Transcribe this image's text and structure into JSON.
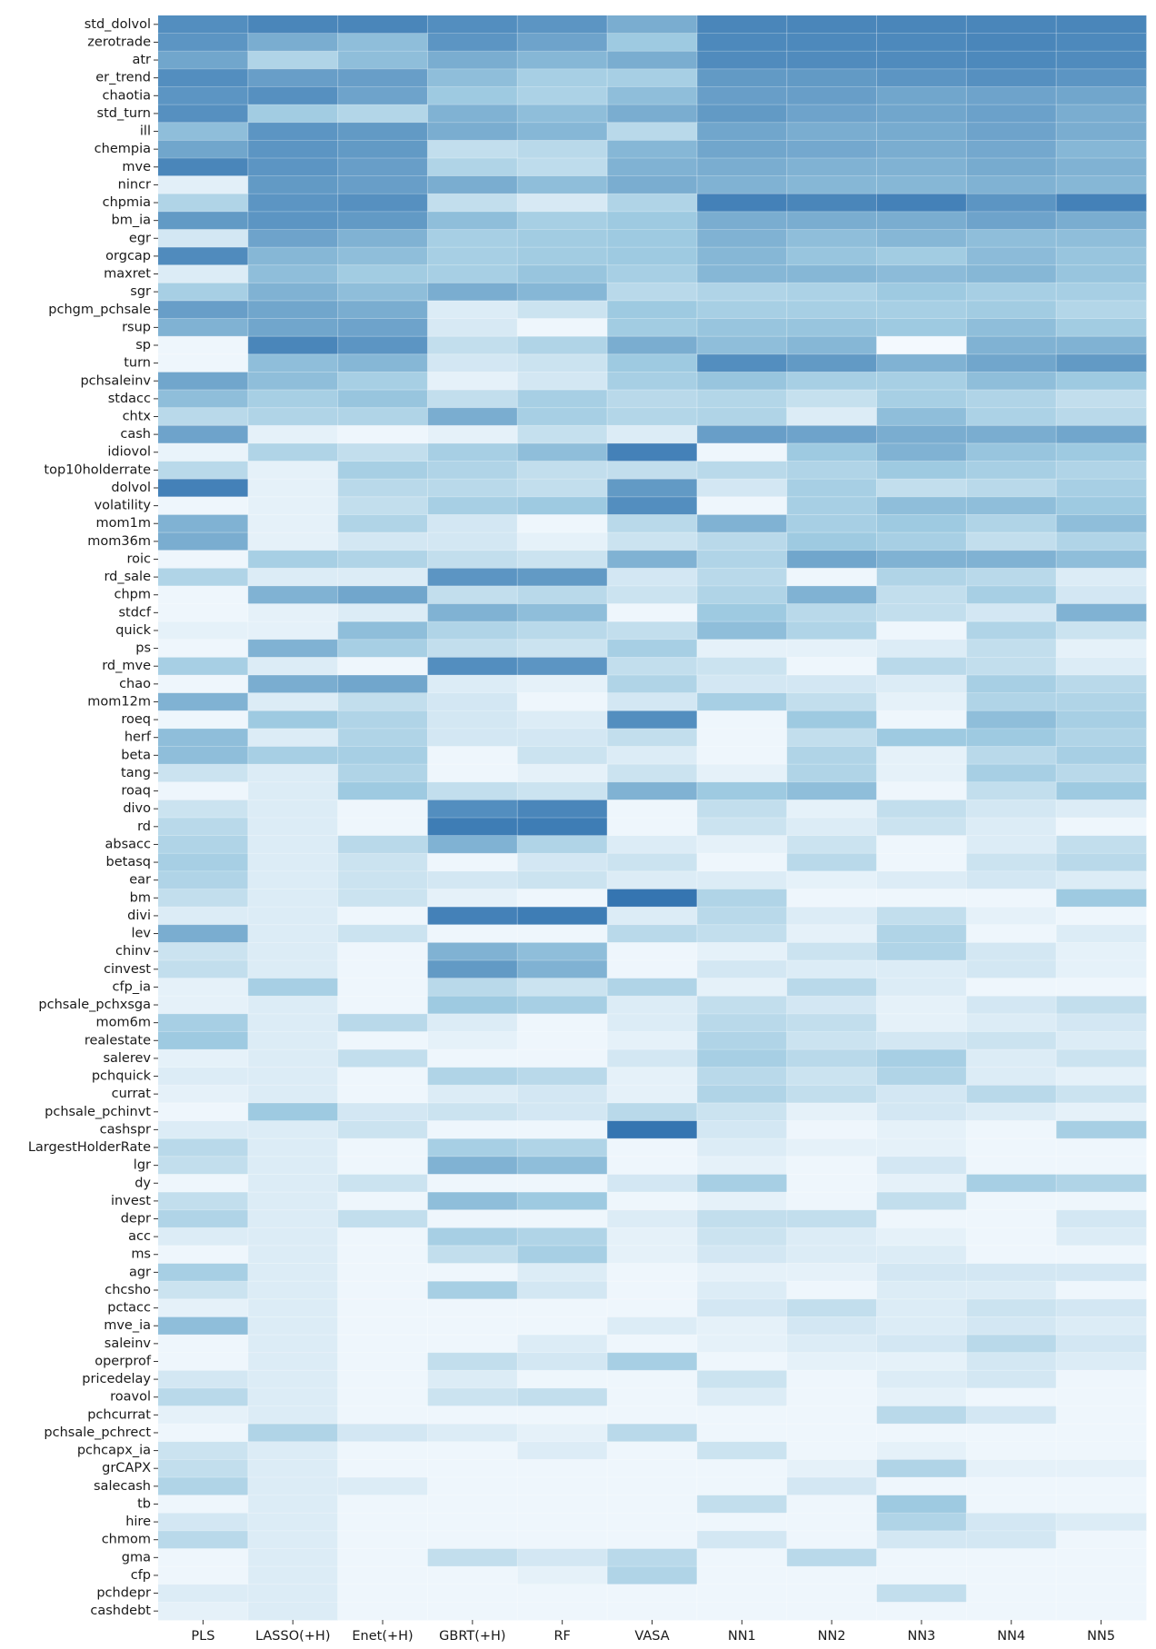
{
  "chart_data": {
    "type": "heatmap",
    "title": "",
    "xlabel": "",
    "ylabel": "",
    "colormap": "Blues",
    "value_range": [
      0,
      1
    ],
    "colors": {
      "low": "#f7fbff",
      "high": "#08519c"
    },
    "columns": [
      "PLS",
      "LASSO(+H)",
      "Enet(+H)",
      "GBRT(+H)",
      "RF",
      "VASA",
      "NN1",
      "NN2",
      "NN3",
      "NN4",
      "NN5"
    ],
    "rows": [
      "std_dolvol",
      "zerotrade",
      "atr",
      "er_trend",
      "chaotia",
      "std_turn",
      "ill",
      "chempia",
      "mve",
      "nincr",
      "chpmia",
      "bm_ia",
      "egr",
      "orgcap",
      "maxret",
      "sgr",
      "pchgm_pchsale",
      "rsup",
      "sp",
      "turn",
      "pchsaleinv",
      "stdacc",
      "chtx",
      "cash",
      "idiovol",
      "top10holderrate",
      "dolvol",
      "volatility",
      "mom1m",
      "mom36m",
      "roic",
      "rd_sale",
      "chpm",
      "stdcf",
      "quick",
      "ps",
      "rd_mve",
      "chao",
      "mom12m",
      "roeq",
      "herf",
      "beta",
      "tang",
      "roaq",
      "divo",
      "rd",
      "absacc",
      "betasq",
      "ear",
      "bm",
      "divi",
      "lev",
      "chinv",
      "cinvest",
      "cfp_ia",
      "pchsale_pchxsga",
      "mom6m",
      "realestate",
      "salerev",
      "pchquick",
      "currat",
      "pchsale_pchinvt",
      "cashspr",
      "LargestHolderRate",
      "lgr",
      "dy",
      "invest",
      "depr",
      "acc",
      "ms",
      "agr",
      "chcsho",
      "pctacc",
      "mve_ia",
      "saleinv",
      "operprof",
      "pricedelay",
      "roavol",
      "pchcurrat",
      "pchsale_pchrect",
      "pchcapx_ia",
      "grCAPX",
      "salecash",
      "tb",
      "hire",
      "chmom",
      "gma",
      "cfp",
      "pchdepr",
      "cashdebt"
    ],
    "values": [
      [
        0.75,
        0.78,
        0.78,
        0.75,
        0.72,
        0.62,
        0.78,
        0.78,
        0.78,
        0.78,
        0.78
      ],
      [
        0.72,
        0.62,
        0.55,
        0.72,
        0.66,
        0.5,
        0.77,
        0.77,
        0.77,
        0.78,
        0.77
      ],
      [
        0.65,
        0.4,
        0.55,
        0.62,
        0.58,
        0.62,
        0.76,
        0.76,
        0.76,
        0.77,
        0.76
      ],
      [
        0.75,
        0.68,
        0.68,
        0.55,
        0.45,
        0.45,
        0.7,
        0.7,
        0.72,
        0.74,
        0.72
      ],
      [
        0.72,
        0.74,
        0.66,
        0.5,
        0.42,
        0.55,
        0.68,
        0.68,
        0.65,
        0.66,
        0.65
      ],
      [
        0.74,
        0.48,
        0.38,
        0.6,
        0.55,
        0.62,
        0.7,
        0.66,
        0.65,
        0.67,
        0.62
      ],
      [
        0.55,
        0.72,
        0.7,
        0.62,
        0.58,
        0.35,
        0.65,
        0.62,
        0.63,
        0.66,
        0.62
      ],
      [
        0.65,
        0.72,
        0.7,
        0.3,
        0.35,
        0.58,
        0.65,
        0.64,
        0.62,
        0.64,
        0.58
      ],
      [
        0.78,
        0.72,
        0.68,
        0.4,
        0.32,
        0.6,
        0.62,
        0.6,
        0.6,
        0.63,
        0.6
      ],
      [
        0.12,
        0.7,
        0.68,
        0.62,
        0.55,
        0.62,
        0.6,
        0.58,
        0.58,
        0.6,
        0.58
      ],
      [
        0.4,
        0.72,
        0.74,
        0.3,
        0.18,
        0.4,
        0.8,
        0.78,
        0.8,
        0.72,
        0.8
      ],
      [
        0.7,
        0.72,
        0.7,
        0.55,
        0.45,
        0.5,
        0.62,
        0.62,
        0.62,
        0.66,
        0.62
      ],
      [
        0.2,
        0.66,
        0.6,
        0.45,
        0.48,
        0.5,
        0.6,
        0.55,
        0.58,
        0.55,
        0.55
      ],
      [
        0.76,
        0.58,
        0.55,
        0.45,
        0.48,
        0.5,
        0.58,
        0.52,
        0.48,
        0.56,
        0.52
      ],
      [
        0.15,
        0.55,
        0.48,
        0.45,
        0.52,
        0.45,
        0.58,
        0.58,
        0.56,
        0.58,
        0.52
      ],
      [
        0.45,
        0.6,
        0.55,
        0.62,
        0.58,
        0.35,
        0.4,
        0.42,
        0.5,
        0.45,
        0.45
      ],
      [
        0.68,
        0.65,
        0.62,
        0.15,
        0.25,
        0.5,
        0.45,
        0.45,
        0.45,
        0.48,
        0.38
      ],
      [
        0.6,
        0.65,
        0.66,
        0.18,
        0.05,
        0.48,
        0.52,
        0.52,
        0.5,
        0.55,
        0.48
      ],
      [
        0.05,
        0.78,
        0.72,
        0.3,
        0.4,
        0.62,
        0.55,
        0.58,
        0.02,
        0.6,
        0.6
      ],
      [
        0.05,
        0.55,
        0.58,
        0.2,
        0.25,
        0.5,
        0.75,
        0.7,
        0.6,
        0.65,
        0.7
      ],
      [
        0.65,
        0.55,
        0.45,
        0.1,
        0.2,
        0.45,
        0.52,
        0.45,
        0.45,
        0.55,
        0.5
      ],
      [
        0.55,
        0.45,
        0.52,
        0.3,
        0.45,
        0.35,
        0.38,
        0.28,
        0.45,
        0.4,
        0.3
      ],
      [
        0.35,
        0.4,
        0.4,
        0.62,
        0.45,
        0.38,
        0.4,
        0.15,
        0.55,
        0.42,
        0.35
      ],
      [
        0.66,
        0.1,
        0.05,
        0.1,
        0.28,
        0.15,
        0.68,
        0.66,
        0.62,
        0.62,
        0.65
      ],
      [
        0.08,
        0.4,
        0.3,
        0.45,
        0.55,
        0.8,
        0.05,
        0.5,
        0.6,
        0.52,
        0.5
      ],
      [
        0.35,
        0.1,
        0.45,
        0.4,
        0.3,
        0.3,
        0.35,
        0.4,
        0.5,
        0.45,
        0.4
      ],
      [
        0.8,
        0.1,
        0.35,
        0.35,
        0.3,
        0.7,
        0.2,
        0.45,
        0.3,
        0.35,
        0.45
      ],
      [
        0.05,
        0.1,
        0.3,
        0.45,
        0.5,
        0.75,
        0.05,
        0.45,
        0.55,
        0.55,
        0.5
      ],
      [
        0.6,
        0.1,
        0.4,
        0.2,
        0.05,
        0.35,
        0.6,
        0.45,
        0.5,
        0.4,
        0.55
      ],
      [
        0.62,
        0.1,
        0.2,
        0.2,
        0.1,
        0.25,
        0.35,
        0.5,
        0.45,
        0.3,
        0.4
      ],
      [
        0.05,
        0.45,
        0.4,
        0.3,
        0.25,
        0.6,
        0.4,
        0.65,
        0.6,
        0.6,
        0.55
      ],
      [
        0.4,
        0.15,
        0.15,
        0.72,
        0.7,
        0.2,
        0.35,
        0.05,
        0.4,
        0.35,
        0.15
      ],
      [
        0.05,
        0.6,
        0.65,
        0.3,
        0.35,
        0.25,
        0.4,
        0.6,
        0.3,
        0.45,
        0.2
      ],
      [
        0.05,
        0.1,
        0.15,
        0.6,
        0.55,
        0.05,
        0.5,
        0.35,
        0.3,
        0.2,
        0.6
      ],
      [
        0.1,
        0.1,
        0.55,
        0.4,
        0.35,
        0.3,
        0.55,
        0.4,
        0.05,
        0.4,
        0.25
      ],
      [
        0.05,
        0.6,
        0.45,
        0.3,
        0.25,
        0.45,
        0.1,
        0.1,
        0.15,
        0.3,
        0.1
      ],
      [
        0.45,
        0.15,
        0.05,
        0.75,
        0.72,
        0.3,
        0.25,
        0.05,
        0.35,
        0.3,
        0.15
      ],
      [
        0.05,
        0.62,
        0.65,
        0.15,
        0.1,
        0.4,
        0.2,
        0.2,
        0.15,
        0.45,
        0.35
      ],
      [
        0.6,
        0.15,
        0.3,
        0.2,
        0.05,
        0.2,
        0.45,
        0.3,
        0.1,
        0.4,
        0.4
      ],
      [
        0.05,
        0.5,
        0.4,
        0.2,
        0.15,
        0.75,
        0.05,
        0.5,
        0.05,
        0.55,
        0.45
      ],
      [
        0.55,
        0.15,
        0.4,
        0.2,
        0.2,
        0.3,
        0.05,
        0.3,
        0.5,
        0.5,
        0.4
      ],
      [
        0.55,
        0.45,
        0.45,
        0.05,
        0.25,
        0.15,
        0.05,
        0.4,
        0.1,
        0.35,
        0.45
      ],
      [
        0.25,
        0.15,
        0.4,
        0.05,
        0.1,
        0.25,
        0.1,
        0.4,
        0.1,
        0.45,
        0.35
      ],
      [
        0.05,
        0.15,
        0.5,
        0.3,
        0.25,
        0.6,
        0.5,
        0.55,
        0.05,
        0.3,
        0.5
      ],
      [
        0.25,
        0.15,
        0.05,
        0.75,
        0.78,
        0.05,
        0.3,
        0.1,
        0.3,
        0.2,
        0.15
      ],
      [
        0.35,
        0.15,
        0.05,
        0.82,
        0.82,
        0.05,
        0.25,
        0.15,
        0.25,
        0.15,
        0.05
      ],
      [
        0.4,
        0.15,
        0.35,
        0.6,
        0.4,
        0.15,
        0.1,
        0.25,
        0.05,
        0.15,
        0.3
      ],
      [
        0.45,
        0.15,
        0.25,
        0.05,
        0.2,
        0.25,
        0.05,
        0.35,
        0.05,
        0.25,
        0.35
      ],
      [
        0.4,
        0.15,
        0.25,
        0.2,
        0.25,
        0.15,
        0.15,
        0.1,
        0.15,
        0.2,
        0.15
      ],
      [
        0.3,
        0.15,
        0.25,
        0.1,
        0.05,
        0.85,
        0.4,
        0.05,
        0.05,
        0.05,
        0.5
      ],
      [
        0.15,
        0.15,
        0.05,
        0.8,
        0.82,
        0.15,
        0.35,
        0.15,
        0.3,
        0.1,
        0.05
      ],
      [
        0.62,
        0.15,
        0.25,
        0.05,
        0.05,
        0.35,
        0.3,
        0.1,
        0.4,
        0.05,
        0.15
      ],
      [
        0.25,
        0.15,
        0.05,
        0.6,
        0.55,
        0.05,
        0.1,
        0.25,
        0.4,
        0.2,
        0.1
      ],
      [
        0.3,
        0.15,
        0.05,
        0.7,
        0.6,
        0.05,
        0.2,
        0.15,
        0.15,
        0.2,
        0.1
      ],
      [
        0.1,
        0.45,
        0.05,
        0.35,
        0.25,
        0.4,
        0.1,
        0.35,
        0.15,
        0.05,
        0.05
      ],
      [
        0.1,
        0.15,
        0.05,
        0.5,
        0.45,
        0.15,
        0.3,
        0.2,
        0.1,
        0.2,
        0.3
      ],
      [
        0.45,
        0.15,
        0.35,
        0.15,
        0.05,
        0.15,
        0.35,
        0.3,
        0.1,
        0.15,
        0.2
      ],
      [
        0.5,
        0.15,
        0.05,
        0.1,
        0.05,
        0.1,
        0.4,
        0.25,
        0.2,
        0.25,
        0.15
      ],
      [
        0.1,
        0.15,
        0.3,
        0.05,
        0.05,
        0.2,
        0.45,
        0.35,
        0.45,
        0.15,
        0.25
      ],
      [
        0.15,
        0.15,
        0.05,
        0.4,
        0.35,
        0.1,
        0.35,
        0.25,
        0.4,
        0.15,
        0.1
      ],
      [
        0.1,
        0.15,
        0.05,
        0.15,
        0.2,
        0.1,
        0.4,
        0.3,
        0.2,
        0.35,
        0.25
      ],
      [
        0.05,
        0.5,
        0.2,
        0.25,
        0.2,
        0.35,
        0.25,
        0.1,
        0.2,
        0.15,
        0.1
      ],
      [
        0.15,
        0.15,
        0.25,
        0.05,
        0.05,
        0.85,
        0.2,
        0.05,
        0.1,
        0.05,
        0.45
      ],
      [
        0.35,
        0.15,
        0.05,
        0.45,
        0.4,
        0.05,
        0.15,
        0.1,
        0.1,
        0.05,
        0.05
      ],
      [
        0.3,
        0.15,
        0.05,
        0.6,
        0.55,
        0.05,
        0.1,
        0.05,
        0.2,
        0.05,
        0.05
      ],
      [
        0.05,
        0.15,
        0.25,
        0.05,
        0.05,
        0.2,
        0.45,
        0.05,
        0.1,
        0.45,
        0.4
      ],
      [
        0.3,
        0.15,
        0.05,
        0.55,
        0.5,
        0.05,
        0.1,
        0.05,
        0.3,
        0.05,
        0.05
      ],
      [
        0.4,
        0.15,
        0.3,
        0.05,
        0.05,
        0.15,
        0.3,
        0.3,
        0.05,
        0.05,
        0.2
      ],
      [
        0.15,
        0.15,
        0.05,
        0.45,
        0.4,
        0.1,
        0.25,
        0.15,
        0.1,
        0.05,
        0.15
      ],
      [
        0.05,
        0.15,
        0.05,
        0.3,
        0.45,
        0.1,
        0.2,
        0.15,
        0.15,
        0.05,
        0.05
      ],
      [
        0.45,
        0.15,
        0.05,
        0.05,
        0.15,
        0.05,
        0.1,
        0.1,
        0.2,
        0.2,
        0.2
      ],
      [
        0.25,
        0.15,
        0.05,
        0.45,
        0.2,
        0.05,
        0.15,
        0.05,
        0.15,
        0.15,
        0.05
      ],
      [
        0.1,
        0.15,
        0.05,
        0.05,
        0.05,
        0.05,
        0.2,
        0.3,
        0.15,
        0.25,
        0.2
      ],
      [
        0.55,
        0.15,
        0.05,
        0.05,
        0.05,
        0.15,
        0.1,
        0.2,
        0.15,
        0.2,
        0.15
      ],
      [
        0.05,
        0.15,
        0.05,
        0.05,
        0.15,
        0.05,
        0.1,
        0.15,
        0.2,
        0.35,
        0.2
      ],
      [
        0.05,
        0.15,
        0.05,
        0.3,
        0.2,
        0.45,
        0.05,
        0.1,
        0.1,
        0.2,
        0.15
      ],
      [
        0.2,
        0.15,
        0.05,
        0.15,
        0.05,
        0.05,
        0.25,
        0.05,
        0.15,
        0.2,
        0.05
      ],
      [
        0.35,
        0.15,
        0.05,
        0.25,
        0.3,
        0.05,
        0.15,
        0.05,
        0.1,
        0.05,
        0.05
      ],
      [
        0.1,
        0.15,
        0.05,
        0.05,
        0.05,
        0.05,
        0.05,
        0.05,
        0.35,
        0.2,
        0.05
      ],
      [
        0.05,
        0.4,
        0.2,
        0.15,
        0.1,
        0.35,
        0.05,
        0.05,
        0.05,
        0.05,
        0.05
      ],
      [
        0.25,
        0.15,
        0.05,
        0.05,
        0.15,
        0.05,
        0.25,
        0.05,
        0.1,
        0.05,
        0.05
      ],
      [
        0.3,
        0.15,
        0.05,
        0.05,
        0.05,
        0.05,
        0.05,
        0.1,
        0.4,
        0.1,
        0.1
      ],
      [
        0.4,
        0.15,
        0.15,
        0.05,
        0.05,
        0.05,
        0.05,
        0.2,
        0.05,
        0.05,
        0.05
      ],
      [
        0.05,
        0.15,
        0.05,
        0.05,
        0.05,
        0.05,
        0.3,
        0.05,
        0.5,
        0.05,
        0.05
      ],
      [
        0.2,
        0.15,
        0.05,
        0.05,
        0.05,
        0.05,
        0.05,
        0.05,
        0.4,
        0.2,
        0.15
      ],
      [
        0.35,
        0.15,
        0.05,
        0.05,
        0.05,
        0.05,
        0.2,
        0.05,
        0.2,
        0.2,
        0.05
      ],
      [
        0.05,
        0.15,
        0.05,
        0.3,
        0.2,
        0.35,
        0.05,
        0.35,
        0.05,
        0.05,
        0.05
      ],
      [
        0.05,
        0.15,
        0.05,
        0.05,
        0.1,
        0.4,
        0.05,
        0.05,
        0.05,
        0.05,
        0.05
      ],
      [
        0.15,
        0.15,
        0.05,
        0.05,
        0.05,
        0.05,
        0.05,
        0.05,
        0.3,
        0.05,
        0.05
      ],
      [
        0.1,
        0.15,
        0.05,
        0.05,
        0.05,
        0.05,
        0.05,
        0.05,
        0.05,
        0.05,
        0.05
      ]
    ]
  }
}
